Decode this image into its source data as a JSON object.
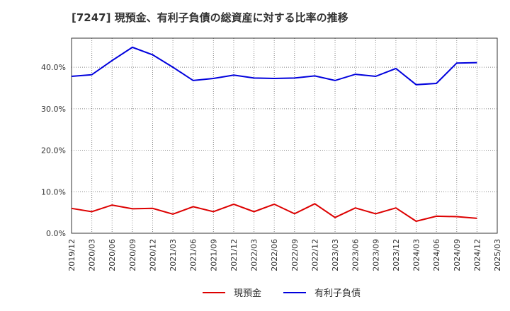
{
  "chart_data": {
    "type": "line",
    "title": "[7247]  現預金、有利子負債の総資産に対する比率の推移",
    "xlabel": "",
    "ylabel": "",
    "ylim": [
      0,
      47
    ],
    "y_ticks": [
      "0.0%",
      "10.0%",
      "20.0%",
      "30.0%",
      "40.0%"
    ],
    "y_tick_values": [
      0,
      10,
      20,
      30,
      40
    ],
    "categories": [
      "2019/12",
      "2020/03",
      "2020/06",
      "2020/09",
      "2020/12",
      "2021/03",
      "2021/06",
      "2021/09",
      "2021/12",
      "2022/03",
      "2022/06",
      "2022/09",
      "2022/12",
      "2023/03",
      "2023/06",
      "2023/09",
      "2023/12",
      "2024/03",
      "2024/06",
      "2024/09",
      "2024/12",
      "2025/03"
    ],
    "grid": true,
    "legend_position": "bottom",
    "series": [
      {
        "name": "現預金",
        "color": "#dd0000",
        "values": [
          6.0,
          5.2,
          6.8,
          5.9,
          6.0,
          4.6,
          6.4,
          5.2,
          7.0,
          5.2,
          7.0,
          4.7,
          7.1,
          3.8,
          6.1,
          4.7,
          6.1,
          2.9,
          4.1,
          4.0,
          3.6,
          null
        ]
      },
      {
        "name": "有利子負債",
        "color": "#0000dd",
        "values": [
          37.8,
          38.2,
          41.6,
          44.8,
          43.0,
          40.0,
          36.8,
          37.3,
          38.1,
          37.4,
          37.3,
          37.4,
          37.9,
          36.8,
          38.3,
          37.8,
          39.7,
          35.8,
          36.1,
          41.0,
          41.1,
          null
        ]
      }
    ]
  }
}
